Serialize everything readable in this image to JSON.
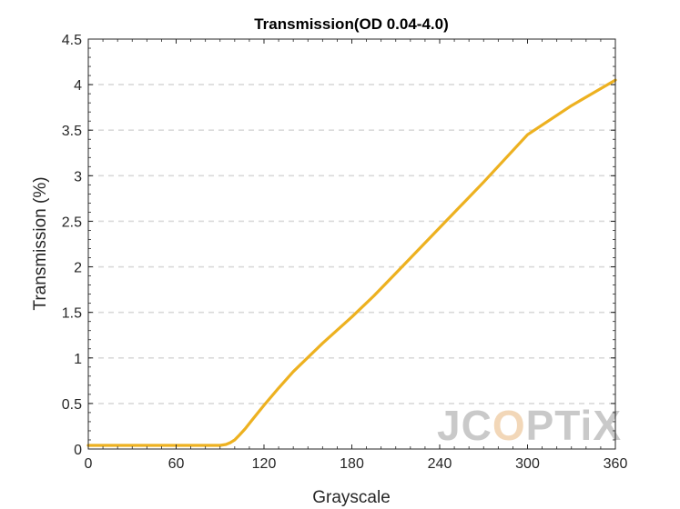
{
  "chart_data": {
    "type": "line",
    "title": "Transmission(OD 0.04-4.0)",
    "xlabel": "Grayscale",
    "ylabel": "Transmission (%)",
    "xlim": [
      0,
      360
    ],
    "ylim": [
      0,
      4.5
    ],
    "xticks": [
      0,
      60,
      120,
      180,
      240,
      300,
      360
    ],
    "yticks": [
      0,
      0.5,
      1,
      1.5,
      2,
      2.5,
      3,
      3.5,
      4,
      4.5
    ],
    "ytick_labels": [
      "0",
      "0.5",
      "1",
      "1.5",
      "2",
      "2.5",
      "3",
      "3.5",
      "4",
      "4.5"
    ],
    "grid": "horizontal-dashed",
    "series": [
      {
        "color": "#EDB120",
        "x": [
          0,
          20,
          40,
          60,
          80,
          90,
          94,
          97,
          100,
          103,
          107,
          112,
          120,
          130,
          140,
          160,
          180,
          195,
          210,
          240,
          270,
          300,
          330,
          360
        ],
        "y": [
          0.04,
          0.04,
          0.04,
          0.04,
          0.04,
          0.04,
          0.05,
          0.07,
          0.1,
          0.15,
          0.22,
          0.32,
          0.48,
          0.67,
          0.85,
          1.16,
          1.45,
          1.68,
          1.93,
          2.43,
          2.93,
          3.45,
          3.77,
          4.05
        ]
      }
    ]
  },
  "watermark": {
    "prefix": "JC",
    "highlight": "O",
    "suffix": "PTiX",
    "highlight_color": "#f2d7b8"
  },
  "colors": {
    "axis": "#262626",
    "grid": "#d9d9d9",
    "line": "#EDB120"
  }
}
